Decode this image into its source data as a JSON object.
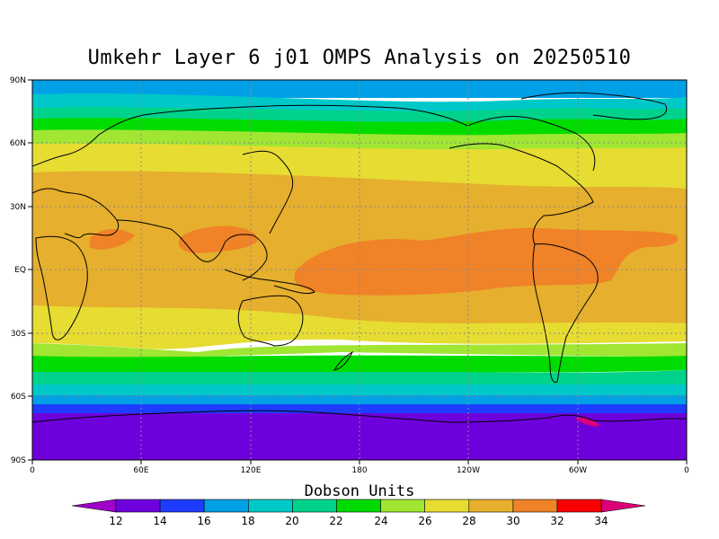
{
  "title": "Umkehr Layer 6 j01 OMPS Analysis on 20250510",
  "lat_ticks": [
    "90N",
    "60N",
    "30N",
    "EQ",
    "30S",
    "60S",
    "90S"
  ],
  "lon_ticks": [
    "0",
    "60E",
    "120E",
    "180",
    "120W",
    "60W",
    "0"
  ],
  "colorbar": {
    "title": "Dobson Units",
    "levels": [
      "12",
      "14",
      "16",
      "18",
      "20",
      "22",
      "24",
      "26",
      "28",
      "30",
      "32",
      "34"
    ],
    "colors": [
      "#a000c8",
      "#6e00dc",
      "#1e3cff",
      "#00a0e6",
      "#00c8c8",
      "#00d28c",
      "#00dc00",
      "#a0e632",
      "#e6dc32",
      "#e6af2d",
      "#f08228",
      "#fa0000",
      "#dc0078"
    ]
  },
  "chart_data": {
    "type": "heatmap",
    "title": "Umkehr Layer 6 j01 OMPS Analysis on 20250510",
    "units": "Dobson Units",
    "x_range": [
      0,
      360
    ],
    "y_range": [
      -90,
      90
    ],
    "grid": true,
    "zonal_profile": [
      {
        "lat": 90,
        "value": 17.5
      },
      {
        "lat": 80,
        "value": 18.5
      },
      {
        "lat": 72,
        "value": 20.5
      },
      {
        "lat": 65,
        "value": 23
      },
      {
        "lat": 55,
        "value": 26
      },
      {
        "lat": 45,
        "value": 28
      },
      {
        "lat": 35,
        "value": 29
      },
      {
        "lat": 20,
        "value": 30
      },
      {
        "lat": 5,
        "value": 30.5
      },
      {
        "lat": -10,
        "value": 30
      },
      {
        "lat": -22,
        "value": 28.5
      },
      {
        "lat": -30,
        "value": 27
      },
      {
        "lat": -37,
        "value": 25
      },
      {
        "lat": -43,
        "value": 23
      },
      {
        "lat": -50,
        "value": 20
      },
      {
        "lat": -57,
        "value": 17
      },
      {
        "lat": -63,
        "value": 15
      },
      {
        "lat": -70,
        "value": 13.5
      },
      {
        "lat": -90,
        "value": 13
      }
    ]
  }
}
